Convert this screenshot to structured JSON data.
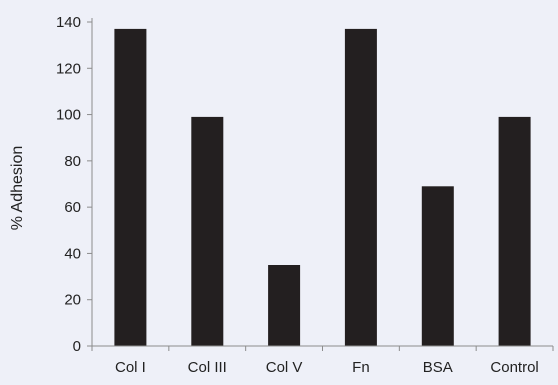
{
  "chart_data": {
    "type": "bar",
    "title": "",
    "xlabel": "",
    "ylabel": "% Adhesion",
    "ylim": [
      0,
      140
    ],
    "yticks": [
      0,
      20,
      40,
      60,
      80,
      100,
      120,
      140
    ],
    "categories": [
      "Col I",
      "Col III",
      "Col V",
      "Fn",
      "BSA",
      "Control"
    ],
    "values": [
      137,
      99,
      35,
      137,
      69,
      99
    ],
    "grid": false,
    "legend": "none",
    "colors": {
      "bar": "#231f20",
      "axis": "#8c8c8c",
      "background": "#eef0f8",
      "text": "#222222"
    }
  }
}
